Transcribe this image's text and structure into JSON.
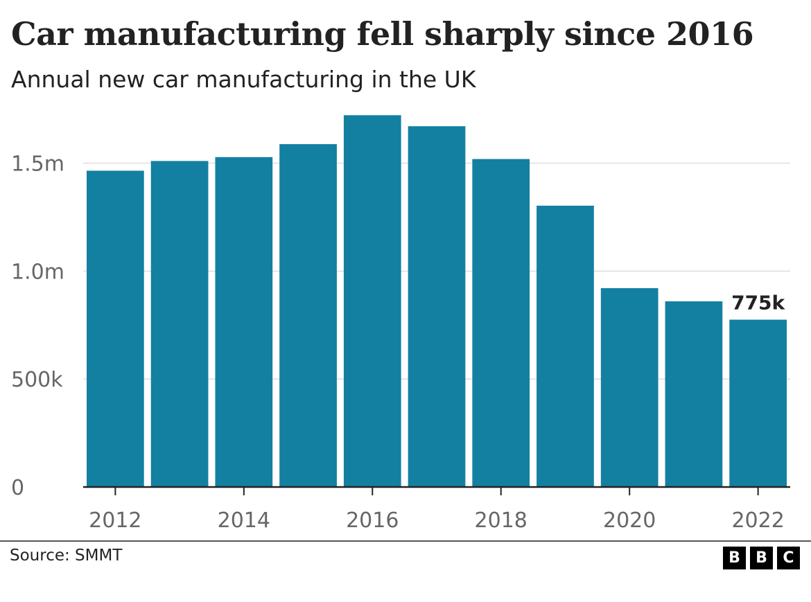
{
  "header": {
    "title": "Car manufacturing fell sharply since 2016",
    "subtitle": "Annual new car manufacturing in the UK"
  },
  "footer": {
    "source": "Source: SMMT",
    "logo_letters": [
      "B",
      "B",
      "C"
    ]
  },
  "colors": {
    "bar": "#1380A1",
    "grid": "#dddddd",
    "axis": "#222222",
    "tick_text": "#666666"
  },
  "chart_data": {
    "type": "bar",
    "title": "Car manufacturing fell sharply since 2016",
    "subtitle": "Annual new car manufacturing in the UK",
    "categories": [
      "2012",
      "2013",
      "2014",
      "2015",
      "2016",
      "2017",
      "2018",
      "2019",
      "2020",
      "2021",
      "2022"
    ],
    "values": [
      1465000,
      1510000,
      1528000,
      1588000,
      1722000,
      1671000,
      1519000,
      1303000,
      921000,
      860000,
      775000
    ],
    "x_tick_labels": [
      "2012",
      "2014",
      "2016",
      "2018",
      "2020",
      "2022"
    ],
    "y_ticks": [
      0,
      500000,
      1000000,
      1500000
    ],
    "y_tick_labels": [
      "0",
      "500k",
      "1.0m",
      "1.5m"
    ],
    "ylim": [
      0,
      1800000
    ],
    "grid": true,
    "annotations": [
      {
        "category": "2022",
        "text": "775k"
      }
    ],
    "xlabel": "",
    "ylabel": ""
  }
}
